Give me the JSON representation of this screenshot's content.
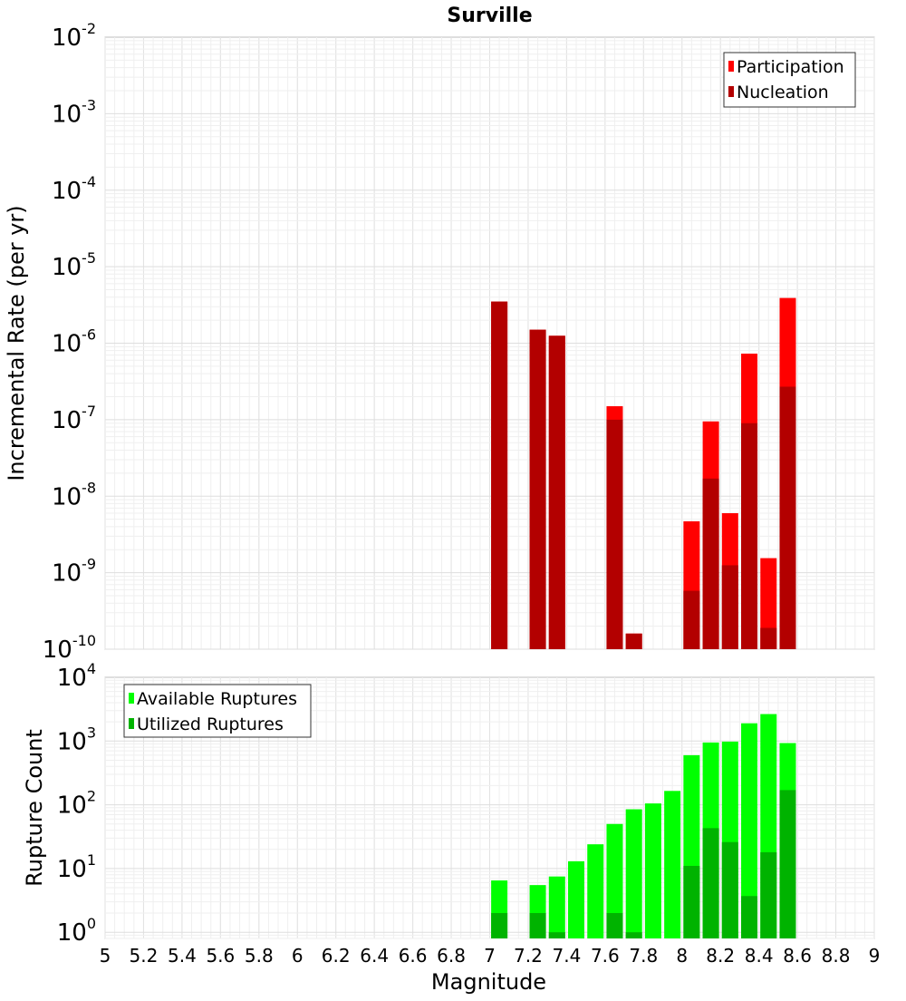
{
  "chart_data": [
    {
      "type": "bar",
      "title": "Surville",
      "ylabel": "Incremental Rate (per yr)",
      "xlabel": "",
      "y_scale": "log",
      "ylim": [
        1e-10,
        0.01
      ],
      "xlim": [
        5,
        9
      ],
      "y_ticks": [
        {
          "base": "10",
          "exp": "-10"
        },
        {
          "base": "10",
          "exp": "-9"
        },
        {
          "base": "10",
          "exp": "-8"
        },
        {
          "base": "10",
          "exp": "-7"
        },
        {
          "base": "10",
          "exp": "-6"
        },
        {
          "base": "10",
          "exp": "-5"
        },
        {
          "base": "10",
          "exp": "-4"
        },
        {
          "base": "10",
          "exp": "-3"
        },
        {
          "base": "10",
          "exp": "-2"
        }
      ],
      "legend_position": "top-right",
      "grid": true,
      "series": [
        {
          "name": "Participation",
          "color": "#ff0000",
          "x": [
            7.05,
            7.25,
            7.35,
            7.65,
            7.75,
            8.05,
            8.15,
            8.25,
            8.35,
            8.45,
            8.55
          ],
          "values": [
            3.5e-06,
            1.5e-06,
            1.25e-06,
            1.5e-07,
            1.6e-10,
            4.7e-09,
            9.5e-08,
            6e-09,
            7.3e-07,
            1.55e-09,
            3.9e-06
          ]
        },
        {
          "name": "Nucleation",
          "color": "#b30000",
          "x": [
            7.05,
            7.25,
            7.35,
            7.65,
            7.75,
            8.05,
            8.15,
            8.25,
            8.35,
            8.45,
            8.55
          ],
          "values": [
            3.5e-06,
            1.5e-06,
            1.25e-06,
            1e-07,
            1.6e-10,
            5.8e-10,
            1.7e-08,
            1.25e-09,
            9e-08,
            1.9e-10,
            2.7e-07
          ]
        }
      ]
    },
    {
      "type": "bar",
      "title": "",
      "ylabel": "Rupture Count",
      "xlabel": "Magnitude",
      "y_scale": "log",
      "ylim": [
        0.8,
        10000
      ],
      "xlim": [
        5,
        9
      ],
      "x_ticks": [
        "5",
        "5.2",
        "5.4",
        "5.6",
        "5.8",
        "6",
        "6.2",
        "6.4",
        "6.6",
        "6.8",
        "7",
        "7.2",
        "7.4",
        "7.6",
        "7.8",
        "8",
        "8.2",
        "8.4",
        "8.6",
        "8.8",
        "9"
      ],
      "y_ticks": [
        {
          "base": "10",
          "exp": "0"
        },
        {
          "base": "10",
          "exp": "1"
        },
        {
          "base": "10",
          "exp": "2"
        },
        {
          "base": "10",
          "exp": "3"
        },
        {
          "base": "10",
          "exp": "4"
        }
      ],
      "legend_position": "top-left",
      "grid": true,
      "series": [
        {
          "name": "Available Ruptures",
          "color": "#00ff00",
          "x": [
            7.05,
            7.25,
            7.35,
            7.45,
            7.55,
            7.65,
            7.75,
            7.85,
            7.95,
            8.05,
            8.15,
            8.25,
            8.35,
            8.45,
            8.55
          ],
          "values": [
            6.5,
            5.5,
            7.5,
            13,
            24,
            50,
            85,
            105,
            165,
            600,
            950,
            980,
            1900,
            2650,
            930
          ]
        },
        {
          "name": "Utilized Ruptures",
          "color": "#00b300",
          "x": [
            7.05,
            7.25,
            7.35,
            7.65,
            7.75,
            8.05,
            8.15,
            8.25,
            8.35,
            8.45,
            8.55
          ],
          "values": [
            2,
            2,
            1,
            2,
            1,
            11,
            43,
            26,
            3.7,
            18,
            170
          ]
        }
      ]
    }
  ]
}
